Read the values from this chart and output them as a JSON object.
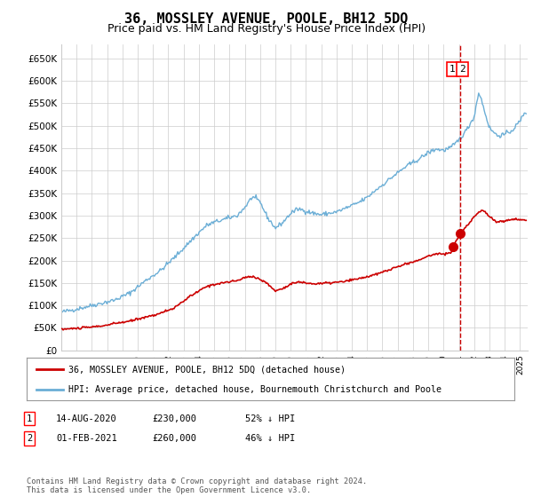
{
  "title": "36, MOSSLEY AVENUE, POOLE, BH12 5DQ",
  "subtitle": "Price paid vs. HM Land Registry's House Price Index (HPI)",
  "title_fontsize": 11,
  "subtitle_fontsize": 9,
  "bg_color": "#ffffff",
  "grid_color": "#cccccc",
  "hpi_color": "#6baed6",
  "price_color": "#cc0000",
  "ylim": [
    0,
    680000
  ],
  "yticks": [
    0,
    50000,
    100000,
    150000,
    200000,
    250000,
    300000,
    350000,
    400000,
    450000,
    500000,
    550000,
    600000,
    650000
  ],
  "annotation1_date": 2020.617,
  "annotation1_price": 230000,
  "annotation2_date": 2021.083,
  "annotation2_price": 260000,
  "vline_x": 2021.083,
  "legend_entry1": "36, MOSSLEY AVENUE, POOLE, BH12 5DQ (detached house)",
  "legend_entry2": "HPI: Average price, detached house, Bournemouth Christchurch and Poole",
  "table_rows": [
    [
      "1",
      "14-AUG-2020",
      "£230,000",
      "52% ↓ HPI"
    ],
    [
      "2",
      "01-FEB-2021",
      "£260,000",
      "46% ↓ HPI"
    ]
  ],
  "footer": "Contains HM Land Registry data © Crown copyright and database right 2024.\nThis data is licensed under the Open Government Licence v3.0.",
  "xmin": 1995.0,
  "xmax": 2025.5
}
